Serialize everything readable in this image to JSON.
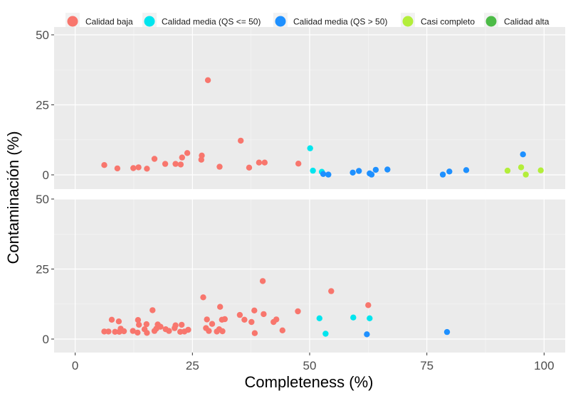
{
  "chart_data": {
    "type": "scatter",
    "xlabel": "Completeness (%)",
    "ylabel": "Contaminación (%)",
    "xlim": [
      -4.5,
      104.5
    ],
    "ylim": [
      -5,
      50
    ],
    "x_ticks": [
      0,
      25,
      50,
      75,
      100
    ],
    "y_ticks": [
      0,
      25,
      50
    ],
    "grid": true,
    "legend_position": "top",
    "series": [
      {
        "name": "Calidad baja",
        "color": "#F8766D"
      },
      {
        "name": "Calidad media (QS <= 50)",
        "color": "#00E5EE"
      },
      {
        "name": "Calidad media (QS > 50)",
        "color": "#1E90FF"
      },
      {
        "name": "Casi completo",
        "color": "#B3EE3A"
      },
      {
        "name": "Calidad alta",
        "color": "#4CBB47"
      }
    ],
    "panels": [
      {
        "points": [
          {
            "x": 6.2,
            "y": 3.5,
            "s": 0
          },
          {
            "x": 9,
            "y": 2.3,
            "s": 0
          },
          {
            "x": 12.4,
            "y": 2.4,
            "s": 0
          },
          {
            "x": 13.5,
            "y": 2.7,
            "s": 0
          },
          {
            "x": 15.3,
            "y": 2.2,
            "s": 0
          },
          {
            "x": 16.9,
            "y": 5.7,
            "s": 0
          },
          {
            "x": 19.2,
            "y": 3.9,
            "s": 0
          },
          {
            "x": 21.4,
            "y": 3.9,
            "s": 0
          },
          {
            "x": 22.5,
            "y": 3.7,
            "s": 0
          },
          {
            "x": 22.8,
            "y": 6.2,
            "s": 0
          },
          {
            "x": 23.9,
            "y": 7.8,
            "s": 0
          },
          {
            "x": 26.9,
            "y": 5.4,
            "s": 0
          },
          {
            "x": 27,
            "y": 6.9,
            "s": 0
          },
          {
            "x": 28.3,
            "y": 33.8,
            "s": 0
          },
          {
            "x": 30.8,
            "y": 2.9,
            "s": 0
          },
          {
            "x": 35.3,
            "y": 12.2,
            "s": 0
          },
          {
            "x": 37.1,
            "y": 2.6,
            "s": 0
          },
          {
            "x": 39.2,
            "y": 4.4,
            "s": 0
          },
          {
            "x": 40.4,
            "y": 4.4,
            "s": 0
          },
          {
            "x": 47.6,
            "y": 4,
            "s": 0
          },
          {
            "x": 50.1,
            "y": 9.5,
            "s": 1
          },
          {
            "x": 50.7,
            "y": 1.5,
            "s": 1
          },
          {
            "x": 52.6,
            "y": 1.1,
            "s": 1
          },
          {
            "x": 52.9,
            "y": 0.3,
            "s": 2
          },
          {
            "x": 54,
            "y": 0.1,
            "s": 2
          },
          {
            "x": 59.2,
            "y": 0.8,
            "s": 2
          },
          {
            "x": 60.5,
            "y": 1.4,
            "s": 2
          },
          {
            "x": 62.8,
            "y": 0.5,
            "s": 2
          },
          {
            "x": 63.2,
            "y": 0.1,
            "s": 2
          },
          {
            "x": 64.1,
            "y": 1.8,
            "s": 2
          },
          {
            "x": 66.6,
            "y": 1.9,
            "s": 2
          },
          {
            "x": 78.4,
            "y": 0.1,
            "s": 2
          },
          {
            "x": 79.8,
            "y": 1.2,
            "s": 2
          },
          {
            "x": 83.4,
            "y": 1.7,
            "s": 2
          },
          {
            "x": 95.5,
            "y": 7.3,
            "s": 2
          },
          {
            "x": 92.2,
            "y": 1.5,
            "s": 3
          },
          {
            "x": 95.1,
            "y": 2.7,
            "s": 3
          },
          {
            "x": 96.1,
            "y": 0.1,
            "s": 3
          },
          {
            "x": 99.3,
            "y": 1.6,
            "s": 3
          }
        ]
      },
      {
        "points": [
          {
            "x": 6.2,
            "y": 2.7,
            "s": 0
          },
          {
            "x": 7.1,
            "y": 2.7,
            "s": 0
          },
          {
            "x": 7.8,
            "y": 6.9,
            "s": 0
          },
          {
            "x": 8.5,
            "y": 2.6,
            "s": 0
          },
          {
            "x": 9.3,
            "y": 6.3,
            "s": 0
          },
          {
            "x": 9.4,
            "y": 2.6,
            "s": 0
          },
          {
            "x": 9.7,
            "y": 3.7,
            "s": 0
          },
          {
            "x": 10.4,
            "y": 2.8,
            "s": 0
          },
          {
            "x": 12.3,
            "y": 2.9,
            "s": 0
          },
          {
            "x": 13.3,
            "y": 2.3,
            "s": 0
          },
          {
            "x": 13.4,
            "y": 6.8,
            "s": 0
          },
          {
            "x": 13.6,
            "y": 5.1,
            "s": 0
          },
          {
            "x": 14.8,
            "y": 3.5,
            "s": 0
          },
          {
            "x": 15.2,
            "y": 5.3,
            "s": 0
          },
          {
            "x": 15.3,
            "y": 2.2,
            "s": 0
          },
          {
            "x": 16.5,
            "y": 10.3,
            "s": 0
          },
          {
            "x": 16.9,
            "y": 2.9,
            "s": 0
          },
          {
            "x": 17.3,
            "y": 3.7,
            "s": 0
          },
          {
            "x": 17.6,
            "y": 5.2,
            "s": 0
          },
          {
            "x": 18.2,
            "y": 4.4,
            "s": 0
          },
          {
            "x": 19.3,
            "y": 3.5,
            "s": 0
          },
          {
            "x": 20,
            "y": 2.9,
            "s": 0
          },
          {
            "x": 21.2,
            "y": 3.9,
            "s": 0
          },
          {
            "x": 21.4,
            "y": 4.9,
            "s": 0
          },
          {
            "x": 22.4,
            "y": 2.6,
            "s": 0
          },
          {
            "x": 22.7,
            "y": 5.1,
            "s": 0
          },
          {
            "x": 23.3,
            "y": 2.7,
            "s": 0
          },
          {
            "x": 24.1,
            "y": 3.3,
            "s": 0
          },
          {
            "x": 27.3,
            "y": 14.9,
            "s": 0
          },
          {
            "x": 27.9,
            "y": 3.9,
            "s": 0
          },
          {
            "x": 28.1,
            "y": 7,
            "s": 0
          },
          {
            "x": 28.5,
            "y": 2.9,
            "s": 0
          },
          {
            "x": 29.2,
            "y": 5.4,
            "s": 0
          },
          {
            "x": 30.2,
            "y": 2.7,
            "s": 0
          },
          {
            "x": 30.7,
            "y": 3.5,
            "s": 0
          },
          {
            "x": 30.9,
            "y": 11.5,
            "s": 0
          },
          {
            "x": 31.3,
            "y": 6.9,
            "s": 0
          },
          {
            "x": 31.4,
            "y": 2.8,
            "s": 0
          },
          {
            "x": 31.9,
            "y": 7.1,
            "s": 0
          },
          {
            "x": 35.1,
            "y": 8.6,
            "s": 0
          },
          {
            "x": 36.1,
            "y": 6.9,
            "s": 0
          },
          {
            "x": 37.6,
            "y": 6.1,
            "s": 0
          },
          {
            "x": 38.2,
            "y": 10.2,
            "s": 0
          },
          {
            "x": 38.3,
            "y": 2.1,
            "s": 0
          },
          {
            "x": 40,
            "y": 20.7,
            "s": 0
          },
          {
            "x": 40.2,
            "y": 8.9,
            "s": 0
          },
          {
            "x": 42.3,
            "y": 6.1,
            "s": 0
          },
          {
            "x": 42.9,
            "y": 7,
            "s": 0
          },
          {
            "x": 44.2,
            "y": 3.1,
            "s": 0
          },
          {
            "x": 47.5,
            "y": 9.9,
            "s": 0
          },
          {
            "x": 54.6,
            "y": 17.1,
            "s": 0
          },
          {
            "x": 62.5,
            "y": 12.1,
            "s": 0
          },
          {
            "x": 52.1,
            "y": 7.4,
            "s": 1
          },
          {
            "x": 53.4,
            "y": 1.9,
            "s": 1
          },
          {
            "x": 59.3,
            "y": 7.7,
            "s": 1
          },
          {
            "x": 62.8,
            "y": 7.4,
            "s": 1
          },
          {
            "x": 62.2,
            "y": 1.7,
            "s": 2
          },
          {
            "x": 79.3,
            "y": 2.5,
            "s": 2
          }
        ]
      }
    ]
  }
}
